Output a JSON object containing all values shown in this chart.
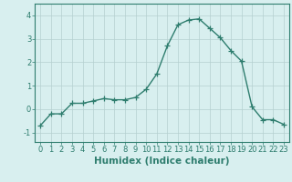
{
  "x": [
    0,
    1,
    2,
    3,
    4,
    5,
    6,
    7,
    8,
    9,
    10,
    11,
    12,
    13,
    14,
    15,
    16,
    17,
    18,
    19,
    20,
    21,
    22,
    23
  ],
  "y": [
    -0.7,
    -0.2,
    -0.2,
    0.25,
    0.25,
    0.35,
    0.45,
    0.4,
    0.4,
    0.5,
    0.85,
    1.5,
    2.7,
    3.6,
    3.8,
    3.85,
    3.45,
    3.05,
    2.5,
    2.05,
    0.1,
    -0.45,
    -0.45,
    -0.65
  ],
  "line_color": "#2e7d6e",
  "marker": "+",
  "markersize": 4,
  "linewidth": 1.0,
  "xlabel": "Humidex (Indice chaleur)",
  "xlim": [
    -0.5,
    23.5
  ],
  "ylim": [
    -1.4,
    4.5
  ],
  "yticks": [
    -1,
    0,
    1,
    2,
    3,
    4
  ],
  "xticks": [
    0,
    1,
    2,
    3,
    4,
    5,
    6,
    7,
    8,
    9,
    10,
    11,
    12,
    13,
    14,
    15,
    16,
    17,
    18,
    19,
    20,
    21,
    22,
    23
  ],
  "bg_color": "#d8efef",
  "grid_color": "#b5d0d0",
  "tick_fontsize": 6,
  "xlabel_fontsize": 7.5
}
